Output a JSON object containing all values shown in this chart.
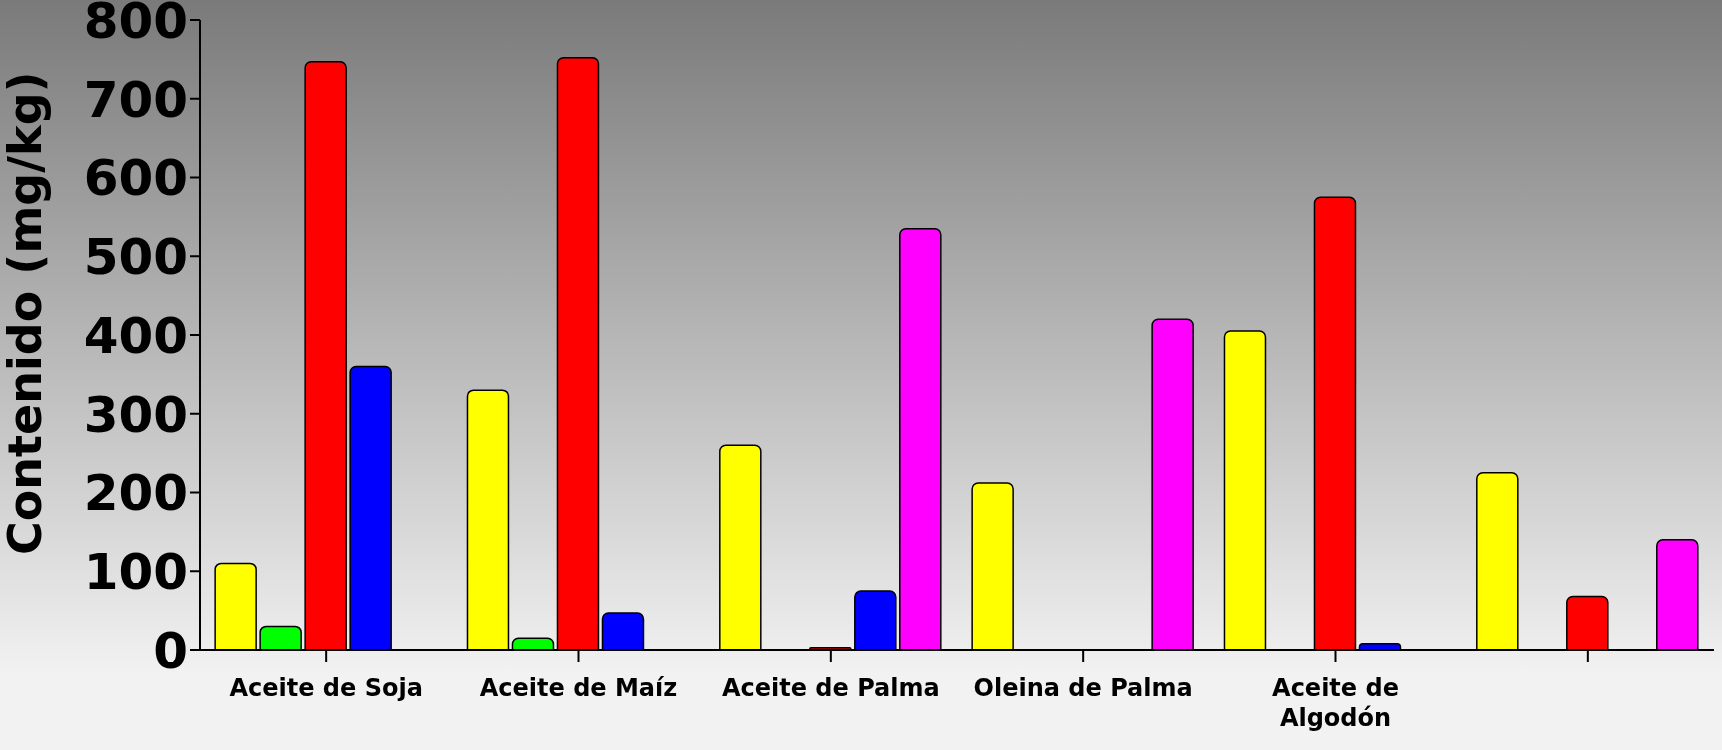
{
  "chart_data": {
    "type": "bar",
    "ylabel": "Contenido (mg/kg)",
    "categories": [
      "Aceite de Soja",
      "Aceite de Maíz",
      "Aceite de Palma",
      "Oleina de Palma",
      "Aceite de Algodón",
      null
    ],
    "series": [
      {
        "color": "#ffff00",
        "values": [
          110,
          330,
          260,
          212,
          405,
          225
        ]
      },
      {
        "color": "#00ff00",
        "values": [
          30,
          15,
          0,
          0,
          0,
          0
        ]
      },
      {
        "color": "#ff0000",
        "values": [
          747,
          752,
          3,
          0,
          575,
          68
        ]
      },
      {
        "color": "#0000ff",
        "values": [
          360,
          47,
          75,
          0,
          8,
          0
        ]
      },
      {
        "color": "#ff00ff",
        "values": [
          null,
          null,
          535,
          420,
          null,
          140
        ]
      }
    ],
    "ylim": [
      0,
      800
    ],
    "yticks": [
      0,
      100,
      200,
      300,
      400,
      500,
      600,
      700,
      800
    ],
    "grid": false,
    "legend": false
  }
}
